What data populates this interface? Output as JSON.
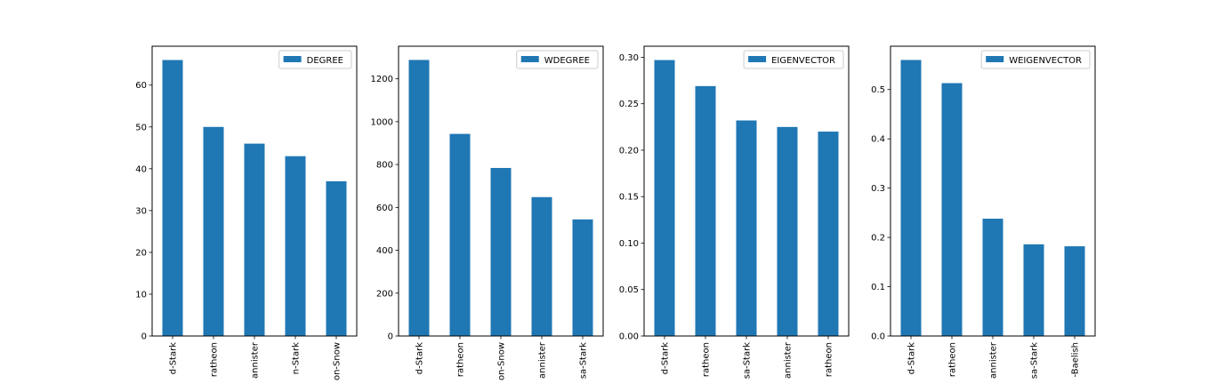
{
  "chart_data": [
    {
      "type": "bar",
      "categories": [
        "d-Stark",
        "ratheon",
        "annister",
        "n-Stark",
        "on-Snow"
      ],
      "series": [
        {
          "name": "DEGREE",
          "values": [
            66,
            50,
            46,
            43,
            37
          ]
        }
      ],
      "ylim": [
        0,
        69.3
      ],
      "yticks": [
        0,
        10,
        20,
        30,
        40,
        50,
        60
      ],
      "ytick_labels": [
        "0",
        "10",
        "20",
        "30",
        "40",
        "50",
        "60"
      ],
      "legend": "top-right",
      "color": "#1f77b4",
      "grid": false
    },
    {
      "type": "bar",
      "categories": [
        "d-Stark",
        "ratheon",
        "on-Snow",
        "annister",
        "sa-Stark"
      ],
      "series": [
        {
          "name": "WDEGREE",
          "values": [
            1288,
            943,
            784,
            648,
            544
          ]
        }
      ],
      "ylim": [
        0,
        1352
      ],
      "yticks": [
        0,
        200,
        400,
        600,
        800,
        1000,
        1200
      ],
      "ytick_labels": [
        "0",
        "200",
        "400",
        "600",
        "800",
        "1000",
        "1200"
      ],
      "legend": "top-right",
      "color": "#1f77b4",
      "grid": false
    },
    {
      "type": "bar",
      "categories": [
        "d-Stark",
        "ratheon",
        "sa-Stark",
        "annister",
        "ratheon"
      ],
      "series": [
        {
          "name": "EIGENVECTOR",
          "values": [
            0.297,
            0.269,
            0.232,
            0.225,
            0.22
          ]
        }
      ],
      "ylim": [
        0,
        0.3119
      ],
      "yticks": [
        0,
        0.05,
        0.1,
        0.15,
        0.2,
        0.25,
        0.3
      ],
      "ytick_labels": [
        "0.00",
        "0.05",
        "0.10",
        "0.15",
        "0.20",
        "0.25",
        "0.30"
      ],
      "legend": "top-right",
      "color": "#1f77b4",
      "grid": false
    },
    {
      "type": "bar",
      "categories": [
        "d-Stark",
        "ratheon",
        "annister",
        "sa-Stark",
        "-Baelish"
      ],
      "series": [
        {
          "name": "WEIGENVECTOR",
          "values": [
            0.56,
            0.513,
            0.238,
            0.186,
            0.182
          ]
        }
      ],
      "ylim": [
        0,
        0.5879
      ],
      "yticks": [
        0,
        0.1,
        0.2,
        0.3,
        0.4,
        0.5
      ],
      "ytick_labels": [
        "0.0",
        "0.1",
        "0.2",
        "0.3",
        "0.4",
        "0.5"
      ],
      "legend": "top-right",
      "color": "#1f77b4",
      "grid": false
    }
  ]
}
